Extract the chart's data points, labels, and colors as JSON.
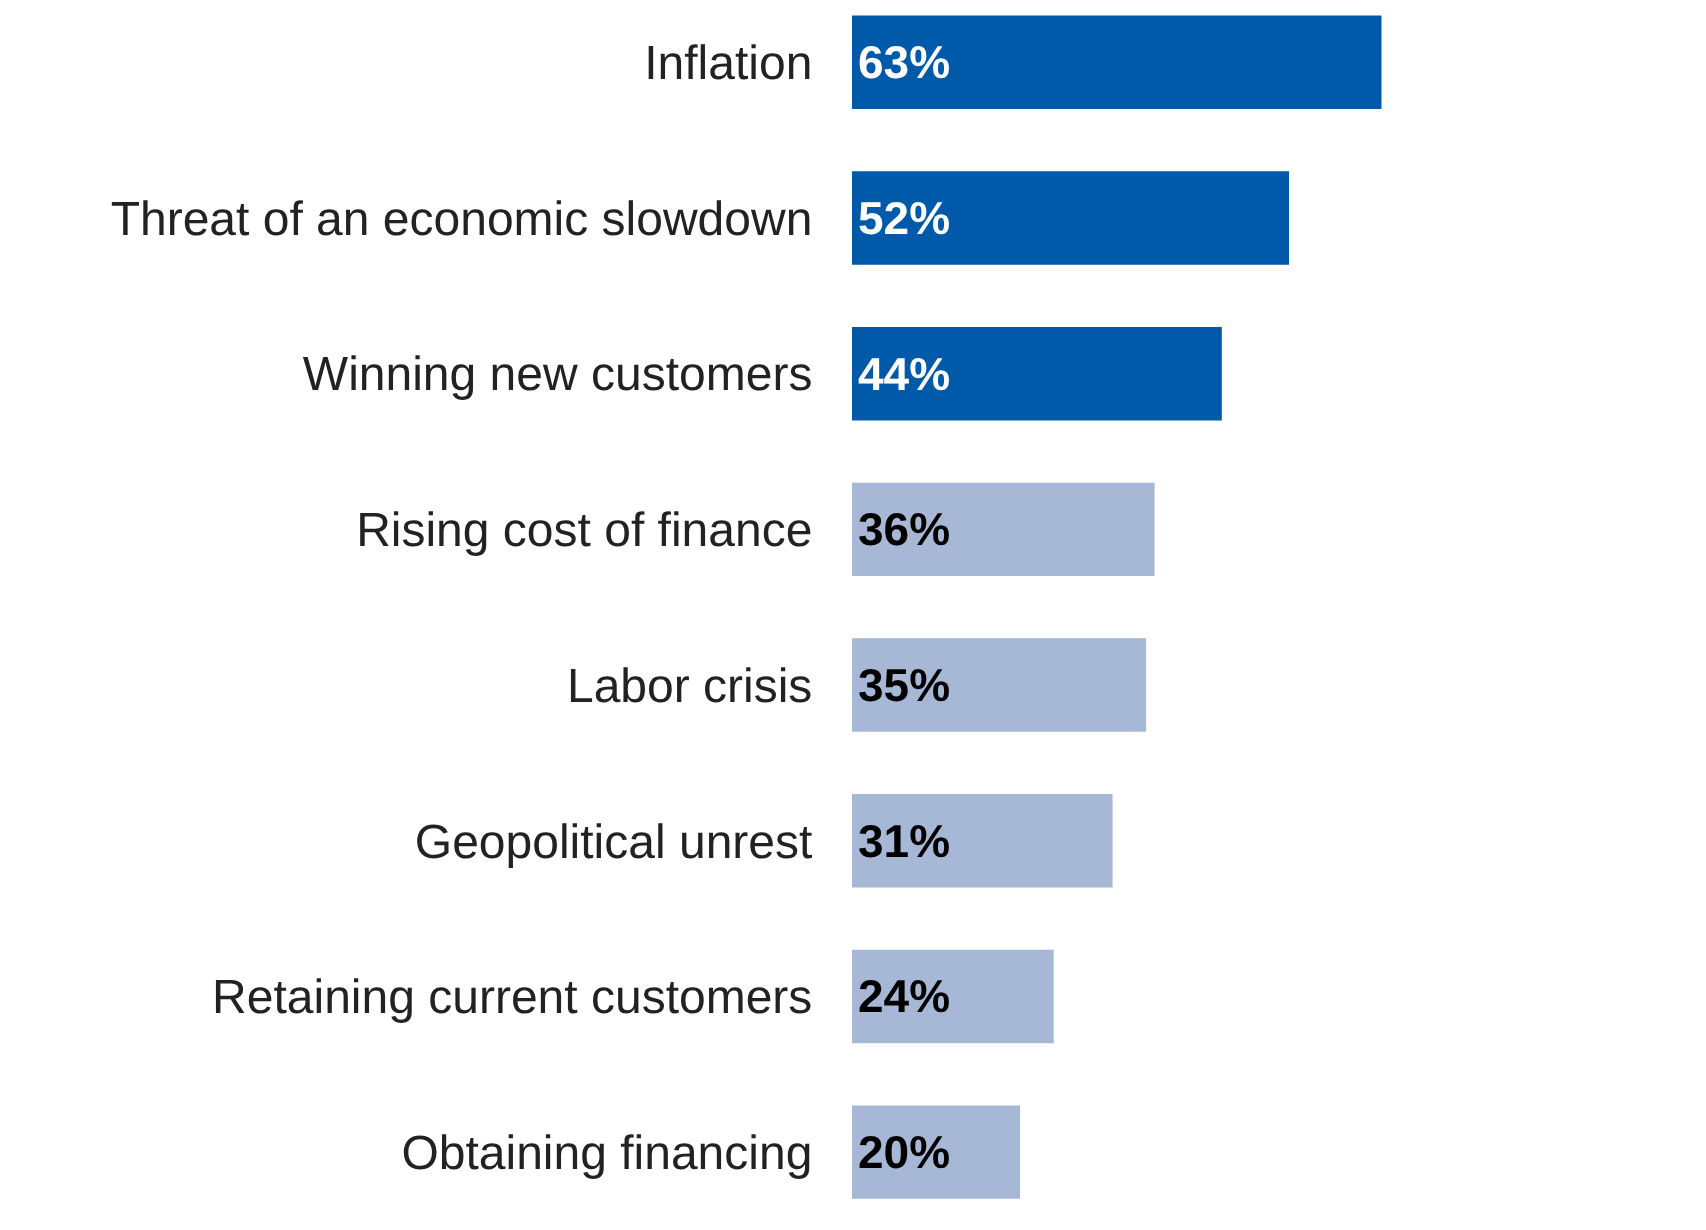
{
  "chart_data": {
    "type": "bar",
    "orientation": "horizontal",
    "categories": [
      "Inflation",
      "Threat of an economic slowdown",
      "Winning new customers",
      "Rising cost of finance",
      "Labor crisis",
      "Geopolitical unrest",
      "Retaining current customers",
      "Obtaining financing"
    ],
    "values": [
      63,
      52,
      44,
      36,
      35,
      31,
      24,
      20
    ],
    "colors": [
      "#005aa9",
      "#005aa9",
      "#005aa9",
      "#a7b7d6",
      "#a7b7d6",
      "#a7b7d6",
      "#a7b7d6",
      "#a7b7d6"
    ],
    "value_labels": [
      "63%",
      "52%",
      "44%",
      "36%",
      "35%",
      "31%",
      "24%",
      "20%"
    ]
  }
}
